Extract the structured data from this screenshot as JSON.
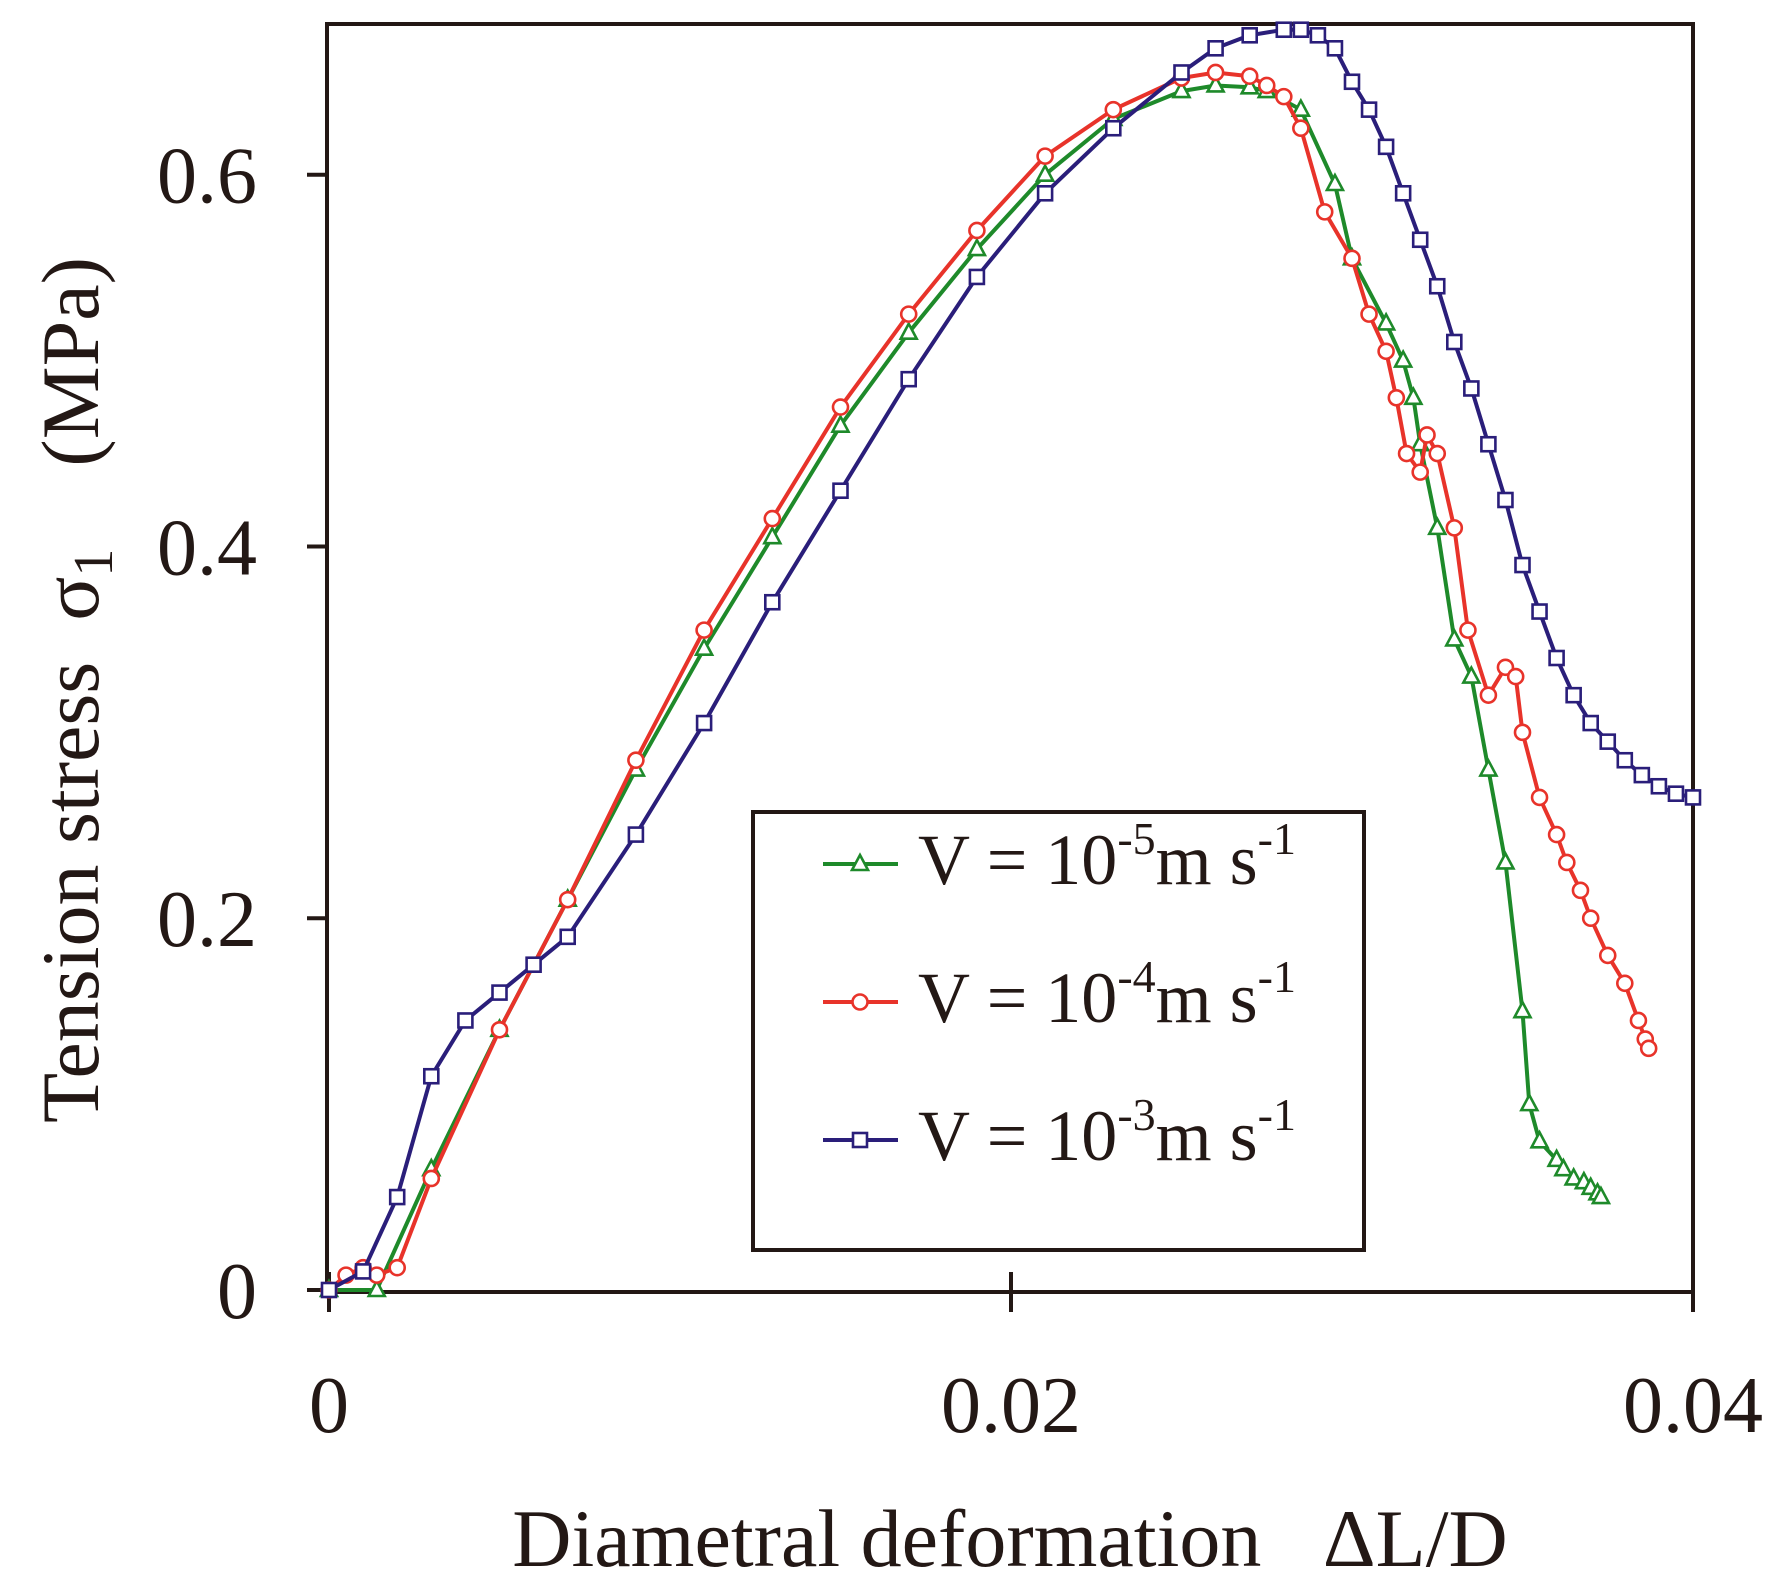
{
  "chart_data": {
    "type": "line",
    "title": "",
    "xlabel": "Diametral deformation   ΔL/D",
    "ylabel": "Tension stress",
    "ylabel_symbol": "σ",
    "ylabel_subscript": "1",
    "ylabel_unit": "(MPa)",
    "xlim": [
      0,
      0.04
    ],
    "ylim": [
      0,
      0.68
    ],
    "xticks": [
      0,
      0.02,
      0.04
    ],
    "xtick_labels": [
      "0",
      "0.02",
      "0.04"
    ],
    "yticks": [
      0,
      0.2,
      0.4,
      0.6
    ],
    "ytick_labels": [
      "0",
      "0.2",
      "0.4",
      "0.6"
    ],
    "grid": false,
    "legend_position": "lower-center",
    "series": [
      {
        "name": "V = 10^-5 m s^-1",
        "legend": {
          "base": "V = 10",
          "exp": "-5",
          "unit": "m s",
          "unit_exp": "-1"
        },
        "color": "#1e8a2a",
        "marker": "triangle",
        "x": [
          0,
          0.0014,
          0.003,
          0.005,
          0.007,
          0.009,
          0.011,
          0.013,
          0.015,
          0.017,
          0.019,
          0.021,
          0.023,
          0.025,
          0.026,
          0.027,
          0.0275,
          0.0285,
          0.0295,
          0.03,
          0.031,
          0.0315,
          0.0318,
          0.032,
          0.0325,
          0.033,
          0.0335,
          0.034,
          0.0345,
          0.035,
          0.0352,
          0.0355,
          0.036,
          0.0362,
          0.0365,
          0.0368,
          0.037,
          0.0372,
          0.0373
        ],
        "y": [
          0,
          0,
          0.065,
          0.14,
          0.21,
          0.28,
          0.345,
          0.405,
          0.465,
          0.515,
          0.56,
          0.6,
          0.63,
          0.645,
          0.648,
          0.647,
          0.645,
          0.635,
          0.595,
          0.555,
          0.52,
          0.5,
          0.48,
          0.455,
          0.41,
          0.35,
          0.33,
          0.28,
          0.23,
          0.15,
          0.1,
          0.08,
          0.07,
          0.065,
          0.06,
          0.058,
          0.055,
          0.052,
          0.05
        ]
      },
      {
        "name": "V = 10^-4 m s^-1",
        "legend": {
          "base": "V = 10",
          "exp": "-4",
          "unit": "m s",
          "unit_exp": "-1"
        },
        "color": "#e8332a",
        "marker": "circle",
        "x": [
          0,
          0.0005,
          0.001,
          0.0014,
          0.002,
          0.003,
          0.005,
          0.007,
          0.009,
          0.011,
          0.013,
          0.015,
          0.017,
          0.019,
          0.021,
          0.023,
          0.025,
          0.026,
          0.027,
          0.0275,
          0.028,
          0.0285,
          0.0292,
          0.03,
          0.0305,
          0.031,
          0.0313,
          0.0316,
          0.032,
          0.0322,
          0.0325,
          0.033,
          0.0334,
          0.034,
          0.0345,
          0.0348,
          0.035,
          0.0355,
          0.036,
          0.0363,
          0.0367,
          0.037,
          0.0375,
          0.038,
          0.0384,
          0.0386,
          0.0387
        ],
        "y": [
          0,
          0.008,
          0.012,
          0.008,
          0.012,
          0.06,
          0.14,
          0.21,
          0.285,
          0.355,
          0.415,
          0.475,
          0.525,
          0.57,
          0.61,
          0.635,
          0.652,
          0.655,
          0.653,
          0.648,
          0.642,
          0.625,
          0.58,
          0.555,
          0.525,
          0.505,
          0.48,
          0.45,
          0.44,
          0.46,
          0.45,
          0.41,
          0.355,
          0.32,
          0.335,
          0.33,
          0.3,
          0.265,
          0.245,
          0.23,
          0.215,
          0.2,
          0.18,
          0.165,
          0.145,
          0.135,
          0.13
        ]
      },
      {
        "name": "V = 10^-3 m s^-1",
        "legend": {
          "base": "V = 10",
          "exp": "-3",
          "unit": "m s",
          "unit_exp": "-1"
        },
        "color": "#2a1e7a",
        "marker": "square",
        "x": [
          0,
          0.001,
          0.002,
          0.003,
          0.004,
          0.005,
          0.006,
          0.007,
          0.009,
          0.011,
          0.013,
          0.015,
          0.017,
          0.019,
          0.021,
          0.023,
          0.025,
          0.026,
          0.027,
          0.028,
          0.0285,
          0.029,
          0.0295,
          0.03,
          0.0305,
          0.031,
          0.0315,
          0.032,
          0.0325,
          0.033,
          0.0335,
          0.034,
          0.0345,
          0.035,
          0.0355,
          0.036,
          0.0365,
          0.037,
          0.0375,
          0.038,
          0.0385,
          0.039,
          0.0395,
          0.04
        ],
        "y": [
          0,
          0.01,
          0.05,
          0.115,
          0.145,
          0.16,
          0.175,
          0.19,
          0.245,
          0.305,
          0.37,
          0.43,
          0.49,
          0.545,
          0.59,
          0.625,
          0.655,
          0.668,
          0.675,
          0.678,
          0.678,
          0.675,
          0.668,
          0.65,
          0.635,
          0.615,
          0.59,
          0.565,
          0.54,
          0.51,
          0.485,
          0.455,
          0.425,
          0.39,
          0.365,
          0.34,
          0.32,
          0.305,
          0.295,
          0.285,
          0.277,
          0.271,
          0.267,
          0.265
        ]
      }
    ]
  }
}
